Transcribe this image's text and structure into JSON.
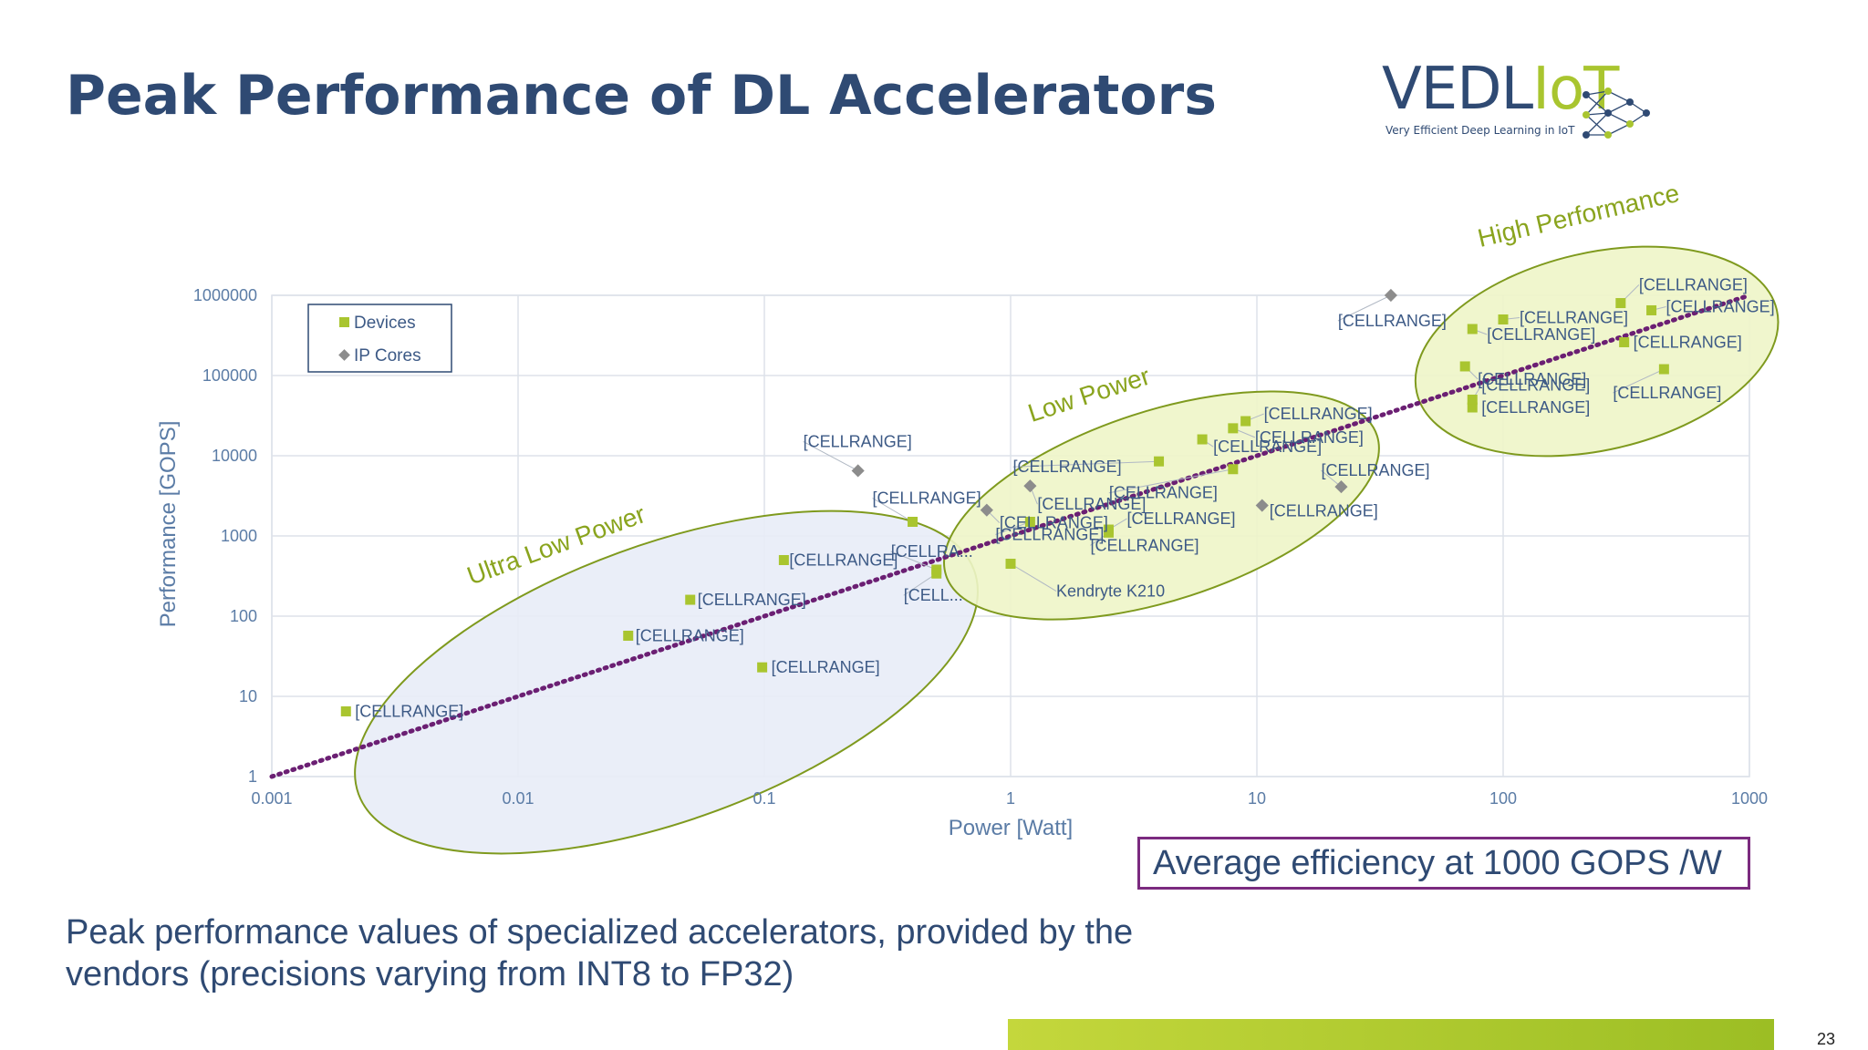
{
  "slide": {
    "title": "Peak Performance of DL Accelerators",
    "logo": {
      "text_main": "VEDL",
      "text_accent": "IoT",
      "tagline": "Very Efficient Deep Learning in IoT"
    },
    "efficiency_note": "Average efficiency at 1000 GOPS /W",
    "subtitle": "Peak performance values of specialized accelerators, provided by the vendors (precisions varying from INT8 to FP32)",
    "page_number": "23"
  },
  "colors": {
    "title": "#2f4a73",
    "axis_text": "#5b7ca6",
    "label_text": "#3d5a86",
    "device": "#a9c52f",
    "ip_core": "#8c8c8c",
    "trend": "#6b1f73",
    "ellipse_stroke": "#7f9a1e",
    "region_label": "#8aa41e",
    "ulp_fill": "#e8ecf7",
    "lp_fill": "#eef5c8",
    "hp_fill": "#eef5c8"
  },
  "chart_data": {
    "type": "scatter",
    "xlabel": "Power [Watt]",
    "ylabel": "Performance [GOPS]",
    "xscale": "log",
    "yscale": "log",
    "xlim": [
      0.001,
      1000
    ],
    "ylim": [
      1,
      1000000
    ],
    "xticks": [
      {
        "v": 0.001,
        "label": "0.001"
      },
      {
        "v": 0.01,
        "label": "0.01"
      },
      {
        "v": 0.1,
        "label": "0.1"
      },
      {
        "v": 1,
        "label": "1"
      },
      {
        "v": 10,
        "label": "10"
      },
      {
        "v": 100,
        "label": "100"
      },
      {
        "v": 1000,
        "label": "1000"
      }
    ],
    "yticks": [
      {
        "v": 1,
        "label": "1"
      },
      {
        "v": 10,
        "label": "10"
      },
      {
        "v": 100,
        "label": "100"
      },
      {
        "v": 1000,
        "label": "1000"
      },
      {
        "v": 10000,
        "label": "10000"
      },
      {
        "v": 100000,
        "label": "100000"
      },
      {
        "v": 1000000,
        "label": "1000000"
      }
    ],
    "grid": true,
    "legend": {
      "placement": "top-left",
      "entries": [
        {
          "name": "Devices",
          "marker": "square"
        },
        {
          "name": "IP Cores",
          "marker": "diamond"
        }
      ]
    },
    "trendline": {
      "style": "dotted",
      "efficiency_gops_per_watt": 1000
    },
    "regions": [
      {
        "label": "Ultra Low Power",
        "center": [
          0.04,
          15
        ],
        "rx_decades": 1.33,
        "ry_decades": 1.72,
        "rotate_deg": -20
      },
      {
        "label": "Low Power",
        "center": [
          4.1,
          2400
        ],
        "rx_decades": 0.92,
        "ry_decades": 1.18,
        "rotate_deg": -18
      },
      {
        "label": "High Performance",
        "center": [
          240,
          200000
        ],
        "rx_decades": 0.75,
        "ry_decades": 1.23,
        "rotate_deg": -13
      }
    ],
    "series": [
      {
        "name": "Devices",
        "marker": "square",
        "points": [
          {
            "x": 0.002,
            "y": 6.5,
            "label": "[CELLRANGE]",
            "ldx": 10,
            "ldy": 0
          },
          {
            "x": 0.028,
            "y": 57,
            "label": "[CELLRANGE]",
            "ldx": 8,
            "ldy": 0
          },
          {
            "x": 0.05,
            "y": 160,
            "label": "[CELLRANGE]",
            "ldx": 8,
            "ldy": 0
          },
          {
            "x": 0.098,
            "y": 23,
            "label": "[CELLRANGE]",
            "ldx": 10,
            "ldy": 0
          },
          {
            "x": 0.12,
            "y": 500,
            "label": "[CELLRANGE]",
            "ldx": 6,
            "ldy": 0
          },
          {
            "x": 0.4,
            "y": 1500,
            "label": "[CELLRANGE]",
            "ldx": -44,
            "ldy": -26
          },
          {
            "x": 0.5,
            "y": 380,
            "label": "[CELLRA...",
            "ldx": -50,
            "ldy": -20
          },
          {
            "x": 0.5,
            "y": 340,
            "label": "[CELL...",
            "ldx": -36,
            "ldy": 24
          },
          {
            "x": 1.0,
            "y": 450,
            "label": "Kendryte K210",
            "ldx": 50,
            "ldy": 30
          },
          {
            "x": 1.2,
            "y": 1500,
            "label": "[CELLRANGE]",
            "ldx": -38,
            "ldy": 14
          },
          {
            "x": 2.5,
            "y": 1200,
            "label": "[CELLRANGE]",
            "ldx": 20,
            "ldy": -12
          },
          {
            "x": 2.5,
            "y": 1100,
            "label": "[CELLRANGE]",
            "ldx": -20,
            "ldy": 14
          },
          {
            "x": 4.0,
            "y": 8500,
            "label": "[CELLRANGE]",
            "ldx": -160,
            "ldy": 6
          },
          {
            "x": 6.0,
            "y": 16000,
            "label": "[CELLRANGE]",
            "ldx": 12,
            "ldy": 8
          },
          {
            "x": 8.0,
            "y": 22000,
            "label": "[CELLRANGE]",
            "ldx": 24,
            "ldy": 10
          },
          {
            "x": 8.0,
            "y": 6800,
            "label": "[CELLRANGE]",
            "ldx": -136,
            "ldy": 26
          },
          {
            "x": 9.0,
            "y": 27000,
            "label": "[CELLRANGE]",
            "ldx": 20,
            "ldy": -8
          },
          {
            "x": 70,
            "y": 130000,
            "label": "[CELLRANGE]",
            "ldx": 14,
            "ldy": 14
          },
          {
            "x": 75,
            "y": 40000,
            "label": "[CELLRANGE]",
            "ldx": 10,
            "ldy": 0
          },
          {
            "x": 75,
            "y": 50000,
            "label": "[CELLRANGE]",
            "ldx": 10,
            "ldy": -16
          },
          {
            "x": 75,
            "y": 380000,
            "label": "[CELLRANGE]",
            "ldx": 16,
            "ldy": 6
          },
          {
            "x": 100,
            "y": 500000,
            "label": "[CELLRANGE]",
            "ldx": 18,
            "ldy": -2
          },
          {
            "x": 300,
            "y": 800000,
            "label": "[CELLRANGE]",
            "ldx": 20,
            "ldy": -20
          },
          {
            "x": 310,
            "y": 260000,
            "label": "[CELLRANGE]",
            "ldx": 10,
            "ldy": 0
          },
          {
            "x": 400,
            "y": 650000,
            "label": "[CELLRANGE]",
            "ldx": 16,
            "ldy": -4
          },
          {
            "x": 450,
            "y": 120000,
            "label": "[CELLRANGE]",
            "ldx": -56,
            "ldy": 26
          }
        ]
      },
      {
        "name": "IP Cores",
        "marker": "diamond",
        "points": [
          {
            "x": 0.24,
            "y": 6500,
            "label": "[CELLRANGE]",
            "ldx": -60,
            "ldy": -32
          },
          {
            "x": 0.8,
            "y": 2100,
            "label": "[CELLRANGE]",
            "ldx": 14,
            "ldy": 14
          },
          {
            "x": 1.2,
            "y": 4200,
            "label": "[CELLRANGE]",
            "ldx": 8,
            "ldy": 20
          },
          {
            "x": 10.5,
            "y": 2400,
            "label": "[CELLRANGE]",
            "ldx": 8,
            "ldy": 6
          },
          {
            "x": 22,
            "y": 4100,
            "label": "[CELLRANGE]",
            "ldx": -22,
            "ldy": -18
          },
          {
            "x": 35,
            "y": 1000000,
            "label": "[CELLRANGE]",
            "ldx": -58,
            "ldy": 28
          }
        ]
      }
    ]
  }
}
